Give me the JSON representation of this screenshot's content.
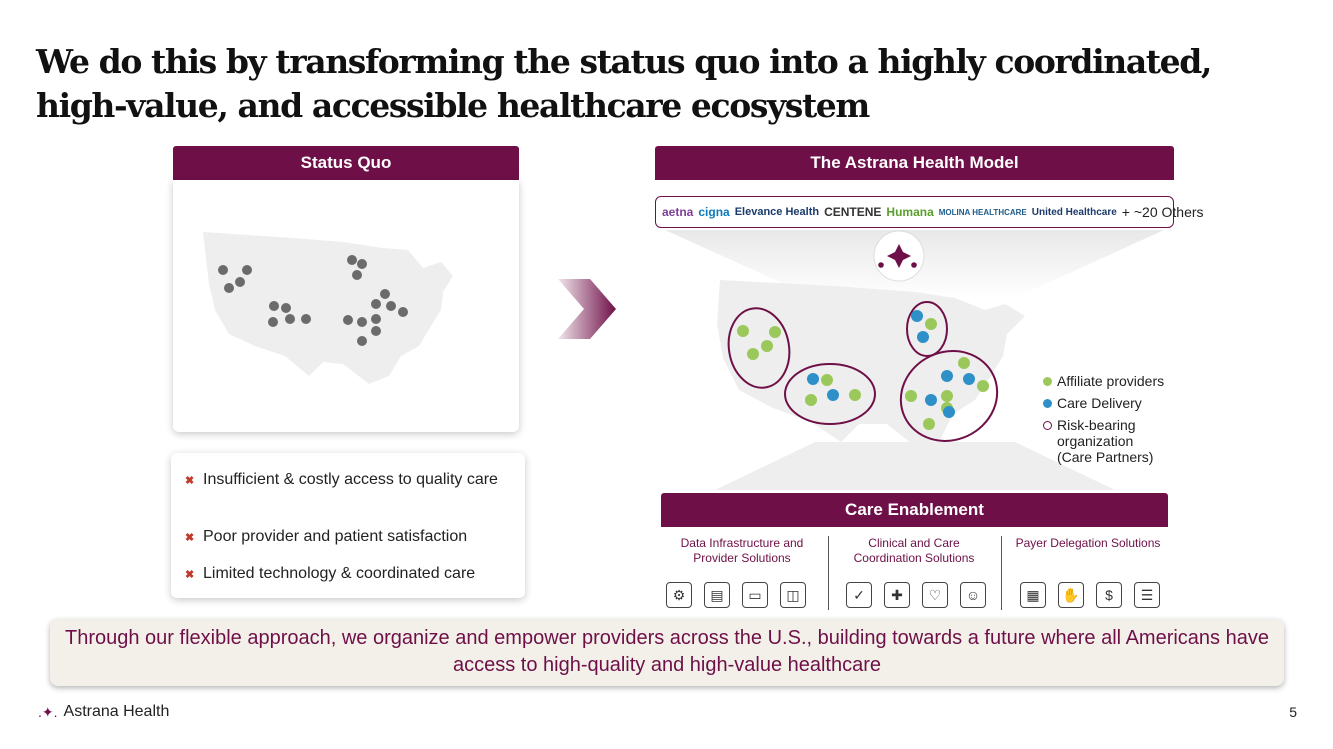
{
  "title": "We do this by transforming the status quo into a highly coordinated, high-value, and accessible healthcare ecosystem",
  "status_quo": {
    "header": "Status Quo",
    "bullets": [
      "Insufficient & costly access to quality care",
      "Poor provider and patient satisfaction",
      "Limited technology & coordinated care"
    ]
  },
  "model": {
    "header": "The Astrana Health Model",
    "payers": [
      "aetna",
      "cigna",
      "Elevance Health",
      "CENTENE",
      "Humana",
      "MOLINA HEALTHCARE",
      "United Healthcare"
    ],
    "payers_more": "+ ~20 Others"
  },
  "legend": {
    "affiliate": "Affiliate providers",
    "care_delivery": "Care Delivery",
    "risk_bearing": "Risk-bearing organization (Care Partners)"
  },
  "care_enablement": {
    "header": "Care Enablement",
    "columns": [
      "Data Infrastructure and Provider Solutions",
      "Clinical and Care Coordination Solutions",
      "Payer Delegation Solutions"
    ]
  },
  "colors": {
    "brand": "#6e1047",
    "affiliate": "#9ac85a",
    "care_delivery": "#2e8fc9",
    "status_dot": "#6b6b6b"
  },
  "banner": "Through our flexible approach, we organize and empower providers across the U.S., building towards a future where all Americans have access to high-quality and high-value healthcare",
  "footer": {
    "logo": "Astrana Health",
    "page": "5"
  }
}
